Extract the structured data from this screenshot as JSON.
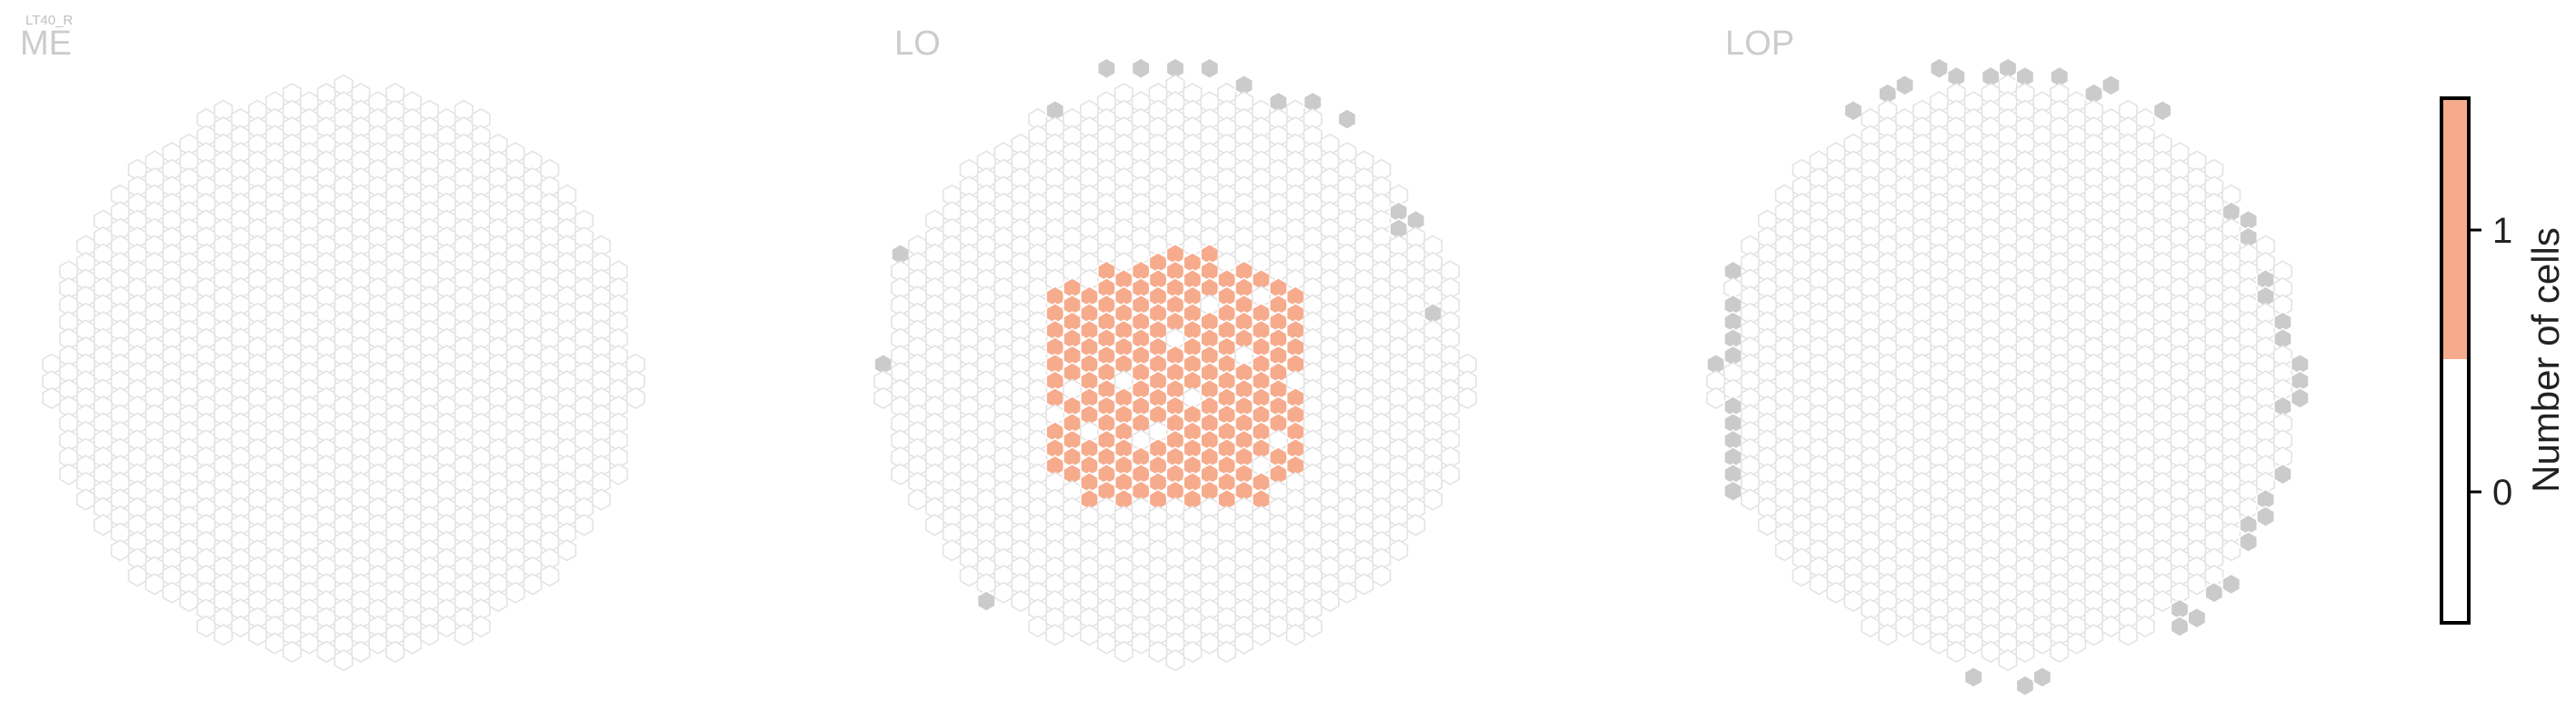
{
  "figure": {
    "cell_type_label": "LT40_R",
    "colors": {
      "filled": "#f7ab8d",
      "edge": "#cbcbcb",
      "empty_stroke": "#e3e3e3",
      "empty_fill": "#ffffff",
      "label": "#cccccc"
    }
  },
  "chart_data": [
    {
      "type": "heatmap",
      "panel": "ME",
      "title": "ME",
      "radius_cols": 17,
      "count_1_cells": [],
      "edge_cells": []
    },
    {
      "type": "heatmap",
      "panel": "LO",
      "title": "LO",
      "radius_cols": 17,
      "count_1_cells": [
        [
          -7,
          -5
        ],
        [
          -7,
          -4
        ],
        [
          -7,
          -3
        ],
        [
          -7,
          -2
        ],
        [
          -7,
          -1
        ],
        [
          -7,
          0
        ],
        [
          -7,
          1
        ],
        [
          -7,
          3
        ],
        [
          -7,
          4
        ],
        [
          -7,
          5
        ],
        [
          -6,
          -5
        ],
        [
          -6,
          -4
        ],
        [
          -6,
          -3
        ],
        [
          -6,
          -2
        ],
        [
          -6,
          -1
        ],
        [
          -6,
          0
        ],
        [
          -6,
          2
        ],
        [
          -6,
          3
        ],
        [
          -6,
          4
        ],
        [
          -6,
          5
        ],
        [
          -6,
          6
        ],
        [
          -5,
          -5
        ],
        [
          -5,
          -4
        ],
        [
          -5,
          -3
        ],
        [
          -5,
          -2
        ],
        [
          -5,
          -1
        ],
        [
          -5,
          0
        ],
        [
          -5,
          1
        ],
        [
          -5,
          2
        ],
        [
          -5,
          4
        ],
        [
          -5,
          5
        ],
        [
          -5,
          6
        ],
        [
          -5,
          7
        ],
        [
          -4,
          -6
        ],
        [
          -4,
          -5
        ],
        [
          -4,
          -4
        ],
        [
          -4,
          -3
        ],
        [
          -4,
          -2
        ],
        [
          -4,
          -1
        ],
        [
          -4,
          0
        ],
        [
          -4,
          1
        ],
        [
          -4,
          2
        ],
        [
          -4,
          3
        ],
        [
          -4,
          4
        ],
        [
          -4,
          5
        ],
        [
          -4,
          6
        ],
        [
          -4,
          7
        ],
        [
          -3,
          -6
        ],
        [
          -3,
          -5
        ],
        [
          -3,
          -4
        ],
        [
          -3,
          -3
        ],
        [
          -3,
          -2
        ],
        [
          -3,
          -1
        ],
        [
          -3,
          1
        ],
        [
          -3,
          2
        ],
        [
          -3,
          3
        ],
        [
          -3,
          4
        ],
        [
          -3,
          5
        ],
        [
          -3,
          6
        ],
        [
          -3,
          7
        ],
        [
          -2,
          -6
        ],
        [
          -2,
          -5
        ],
        [
          -2,
          -4
        ],
        [
          -2,
          -3
        ],
        [
          -2,
          -2
        ],
        [
          -2,
          -1
        ],
        [
          -2,
          0
        ],
        [
          -2,
          1
        ],
        [
          -2,
          2
        ],
        [
          -2,
          3
        ],
        [
          -2,
          5
        ],
        [
          -2,
          6
        ],
        [
          -2,
          7
        ],
        [
          -1,
          -7
        ],
        [
          -1,
          -6
        ],
        [
          -1,
          -5
        ],
        [
          -1,
          -4
        ],
        [
          -1,
          -3
        ],
        [
          -1,
          -2
        ],
        [
          -1,
          -1
        ],
        [
          -1,
          0
        ],
        [
          -1,
          1
        ],
        [
          -1,
          2
        ],
        [
          -1,
          4
        ],
        [
          -1,
          5
        ],
        [
          -1,
          6
        ],
        [
          -1,
          7
        ],
        [
          0,
          -7
        ],
        [
          0,
          -6
        ],
        [
          0,
          -5
        ],
        [
          0,
          -4
        ],
        [
          0,
          -3
        ],
        [
          0,
          -1
        ],
        [
          0,
          0
        ],
        [
          0,
          1
        ],
        [
          0,
          2
        ],
        [
          0,
          3
        ],
        [
          0,
          4
        ],
        [
          0,
          5
        ],
        [
          0,
          6
        ],
        [
          0,
          7
        ],
        [
          1,
          -7
        ],
        [
          1,
          -6
        ],
        [
          1,
          -5
        ],
        [
          1,
          -4
        ],
        [
          1,
          -3
        ],
        [
          1,
          -2
        ],
        [
          1,
          -1
        ],
        [
          1,
          0
        ],
        [
          1,
          2
        ],
        [
          1,
          3
        ],
        [
          1,
          4
        ],
        [
          1,
          5
        ],
        [
          1,
          6
        ],
        [
          1,
          7
        ],
        [
          2,
          -7
        ],
        [
          2,
          -6
        ],
        [
          2,
          -5
        ],
        [
          2,
          -3
        ],
        [
          2,
          -2
        ],
        [
          2,
          -1
        ],
        [
          2,
          0
        ],
        [
          2,
          1
        ],
        [
          2,
          2
        ],
        [
          2,
          3
        ],
        [
          2,
          4
        ],
        [
          2,
          5
        ],
        [
          2,
          6
        ],
        [
          2,
          7
        ],
        [
          3,
          -6
        ],
        [
          3,
          -5
        ],
        [
          3,
          -4
        ],
        [
          3,
          -3
        ],
        [
          3,
          -2
        ],
        [
          3,
          -1
        ],
        [
          3,
          0
        ],
        [
          3,
          1
        ],
        [
          3,
          2
        ],
        [
          3,
          3
        ],
        [
          3,
          4
        ],
        [
          3,
          5
        ],
        [
          3,
          6
        ],
        [
          3,
          7
        ],
        [
          4,
          -6
        ],
        [
          4,
          -5
        ],
        [
          4,
          -4
        ],
        [
          4,
          -3
        ],
        [
          4,
          -2
        ],
        [
          4,
          0
        ],
        [
          4,
          1
        ],
        [
          4,
          2
        ],
        [
          4,
          3
        ],
        [
          4,
          4
        ],
        [
          4,
          5
        ],
        [
          4,
          6
        ],
        [
          4,
          7
        ],
        [
          5,
          -6
        ],
        [
          5,
          -4
        ],
        [
          5,
          -3
        ],
        [
          5,
          -2
        ],
        [
          5,
          -1
        ],
        [
          5,
          0
        ],
        [
          5,
          1
        ],
        [
          5,
          2
        ],
        [
          5,
          3
        ],
        [
          5,
          4
        ],
        [
          5,
          6
        ],
        [
          5,
          7
        ],
        [
          6,
          -5
        ],
        [
          6,
          -4
        ],
        [
          6,
          -3
        ],
        [
          6,
          -2
        ],
        [
          6,
          -1
        ],
        [
          6,
          0
        ],
        [
          6,
          1
        ],
        [
          6,
          2
        ],
        [
          6,
          3
        ],
        [
          6,
          5
        ],
        [
          6,
          6
        ],
        [
          7,
          -5
        ],
        [
          7,
          -4
        ],
        [
          7,
          -3
        ],
        [
          7,
          -2
        ],
        [
          7,
          -1
        ],
        [
          7,
          1
        ],
        [
          7,
          2
        ],
        [
          7,
          3
        ],
        [
          7,
          4
        ],
        [
          7,
          5
        ]
      ],
      "edge_cells": [
        [
          -17,
          -1
        ],
        [
          -16,
          -7
        ],
        [
          -16,
          9
        ],
        [
          -16,
          10
        ],
        [
          -15,
          14
        ],
        [
          -11,
          13
        ],
        [
          -8,
          -18
        ],
        [
          -7,
          -16
        ],
        [
          -5,
          -19
        ],
        [
          -4,
          -18
        ],
        [
          -2,
          -18
        ],
        [
          0,
          -18
        ],
        [
          2,
          -18
        ],
        [
          4,
          -17
        ],
        [
          6,
          -16
        ],
        [
          8,
          -16
        ],
        [
          10,
          -15
        ],
        [
          13,
          -10
        ],
        [
          13,
          -9
        ],
        [
          14,
          -9
        ],
        [
          15,
          -4
        ]
      ]
    },
    {
      "type": "heatmap",
      "panel": "LOP",
      "title": "LOP",
      "radius_cols": 17,
      "count_1_cells": [],
      "edge_cells": [
        [
          -17,
          -1
        ],
        [
          -16,
          -1
        ],
        [
          -16,
          -2
        ],
        [
          -16,
          -3
        ],
        [
          -16,
          -4
        ],
        [
          -16,
          -6
        ],
        [
          -16,
          -8
        ],
        [
          -16,
          -9
        ],
        [
          -16,
          -10
        ],
        [
          -16,
          -11
        ],
        [
          -16,
          -12
        ],
        [
          -16,
          2
        ],
        [
          -16,
          3
        ],
        [
          -16,
          4
        ],
        [
          -16,
          5
        ],
        [
          -16,
          6
        ],
        [
          -16,
          7
        ],
        [
          -16,
          8
        ],
        [
          -15,
          14
        ],
        [
          -15,
          13
        ],
        [
          -15,
          -11
        ],
        [
          -14,
          12
        ],
        [
          -14,
          -12
        ],
        [
          -13,
          -14
        ],
        [
          -12,
          -14
        ],
        [
          -12,
          -15
        ],
        [
          -11,
          -15
        ],
        [
          -10,
          -16
        ],
        [
          -9,
          -16
        ],
        [
          -8,
          -17
        ],
        [
          -7,
          -17
        ],
        [
          -6,
          -17
        ],
        [
          -4,
          -18
        ],
        [
          -3,
          -18
        ],
        [
          -1,
          -18
        ],
        [
          0,
          -18
        ],
        [
          1,
          -18
        ],
        [
          3,
          -18
        ],
        [
          5,
          -17
        ],
        [
          6,
          -17
        ],
        [
          9,
          -16
        ],
        [
          -13,
          15
        ],
        [
          -12,
          16
        ],
        [
          -11,
          16
        ],
        [
          -10,
          17
        ],
        [
          -9,
          17
        ],
        [
          -8,
          18
        ],
        [
          -6,
          18
        ],
        [
          -5,
          19
        ],
        [
          -3,
          19
        ],
        [
          -2,
          18
        ],
        [
          1,
          18
        ],
        [
          2,
          18
        ],
        [
          10,
          14
        ],
        [
          10,
          15
        ],
        [
          11,
          14
        ],
        [
          12,
          13
        ],
        [
          13,
          12
        ],
        [
          14,
          10
        ],
        [
          14,
          9
        ],
        [
          15,
          8
        ],
        [
          15,
          7
        ],
        [
          16,
          6
        ],
        [
          13,
          -10
        ],
        [
          14,
          -9
        ],
        [
          14,
          -8
        ],
        [
          15,
          -6
        ],
        [
          15,
          -5
        ],
        [
          16,
          -3
        ],
        [
          16,
          -2
        ],
        [
          17,
          -1
        ],
        [
          17,
          0
        ],
        [
          17,
          1
        ],
        [
          16,
          2
        ]
      ]
    },
    {
      "type": "colorbar",
      "title": "Number of cells",
      "ticks": [
        "0",
        "1"
      ],
      "colors": [
        "#ffffff",
        "#f7ab8d"
      ]
    }
  ]
}
